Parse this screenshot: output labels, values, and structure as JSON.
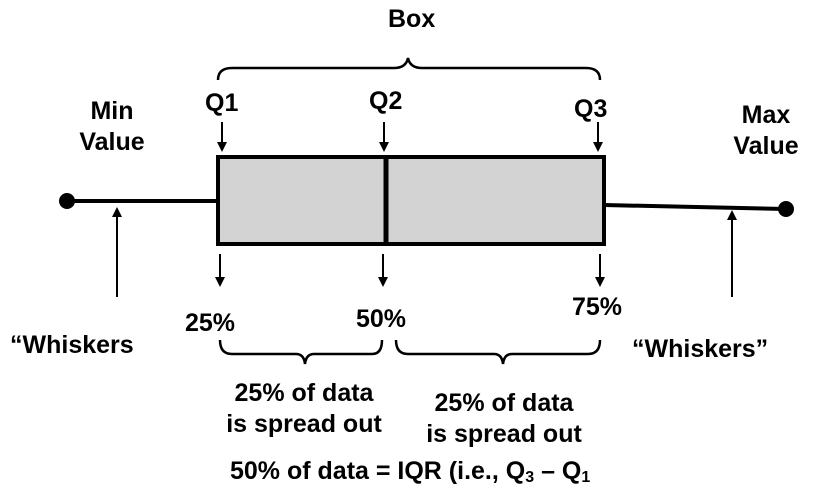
{
  "labels": {
    "box": "Box",
    "min_line1": "Min",
    "min_line2": "Value",
    "max_line1": "Max",
    "max_line2": "Value",
    "q1": "Q1",
    "q2": "Q2",
    "q3": "Q3",
    "pct_25": "25%",
    "pct_50": "50%",
    "pct_75": "75%",
    "whiskers_left": "“Whiskers",
    "whiskers_right": "“Whiskers”",
    "spread_left_line1": "25% of data",
    "spread_left_line2": "is spread out",
    "spread_right_line1": "25% of data",
    "spread_right_line2": "is spread out",
    "iqr_prefix": "50% of data = IQR (i.e., Q",
    "iqr_sub3": "3",
    "iqr_minus": " – Q",
    "iqr_sub1": "1"
  },
  "colors": {
    "box_fill": "#d3d3d3",
    "stroke": "#000000"
  }
}
